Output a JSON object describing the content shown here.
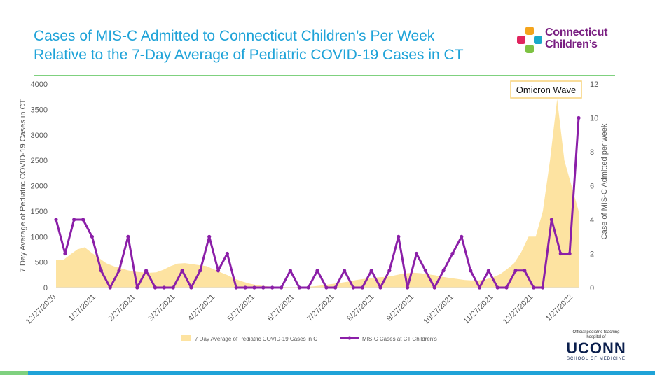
{
  "title": {
    "line1": "Cases of MIS-C Admitted to Connecticut Children’s Per Week",
    "line2": "Relative to the 7-Day Average of Pediatric COVID-19 Cases in CT"
  },
  "logo": {
    "line1": "Connecticut",
    "line2": "Children’s",
    "colors": [
      "#f4a41c",
      "#e0245e",
      "#19a9c9",
      "#7dc242"
    ]
  },
  "footer": {
    "note_line1": "Official pediatric teaching",
    "note_line2": "hospital of",
    "brand": "UCONN",
    "school": "SCHOOL OF MEDICINE"
  },
  "chart_data": {
    "type": "line",
    "annotation": "Omicron Wave",
    "ylabel": "7 Day Average of Pediatric COVID-19 Cases in CT",
    "y2label": "Case of MIS-C Admitted per week",
    "ylim": [
      0,
      4000
    ],
    "y2lim": [
      0,
      12
    ],
    "yticks": [
      "0",
      "500",
      "1000",
      "1500",
      "2000",
      "2500",
      "3000",
      "3500",
      "4000"
    ],
    "y2ticks": [
      "0",
      "2",
      "4",
      "6",
      "8",
      "10",
      "12"
    ],
    "xticks": [
      "12/27/2020",
      "1/27/2021",
      "2/27/2021",
      "3/27/2021",
      "4/27/2021",
      "5/27/2021",
      "6/27/2021",
      "7/27/2021",
      "8/27/2021",
      "9/27/2021",
      "10/27/2021",
      "11/27/2021",
      "12/27/2021",
      "1/27/2022"
    ],
    "legend": [
      "7 Day Average of Pediatric COVID-19 Cases in CT",
      "MIS-C Cases at CT Children's"
    ],
    "area_color": "#fde3a1",
    "line_color": "#8b1fa8",
    "series": [
      {
        "name": "7 Day Average of Pediatric COVID-19 Cases in CT",
        "type": "area",
        "values": [
          550,
          540,
          650,
          750,
          790,
          680,
          580,
          480,
          420,
          380,
          340,
          310,
          300,
          290,
          300,
          350,
          420,
          470,
          480,
          460,
          440,
          420,
          360,
          300,
          240,
          170,
          120,
          80,
          50,
          30,
          20,
          15,
          12,
          10,
          12,
          15,
          25,
          40,
          60,
          80,
          100,
          120,
          150,
          170,
          190,
          200,
          210,
          230,
          260,
          280,
          290,
          280,
          260,
          240,
          210,
          190,
          170,
          150,
          140,
          140,
          160,
          200,
          260,
          360,
          480,
          700,
          1000,
          1000,
          1500,
          2500,
          3700,
          2500,
          2000,
          1500
        ]
      },
      {
        "name": "MIS-C Cases at CT Children's",
        "type": "line",
        "values": [
          4,
          2,
          4,
          4,
          3,
          1,
          0,
          1,
          3,
          0,
          1,
          0,
          0,
          0,
          1,
          0,
          1,
          3,
          1,
          2,
          0,
          0,
          0,
          0,
          0,
          0,
          1,
          0,
          0,
          1,
          0,
          0,
          1,
          0,
          0,
          1,
          0,
          1,
          3,
          0,
          2,
          1,
          0,
          1,
          2,
          3,
          1,
          0,
          1,
          0,
          0,
          1,
          1,
          0,
          0,
          4,
          2,
          2,
          10
        ]
      }
    ]
  }
}
